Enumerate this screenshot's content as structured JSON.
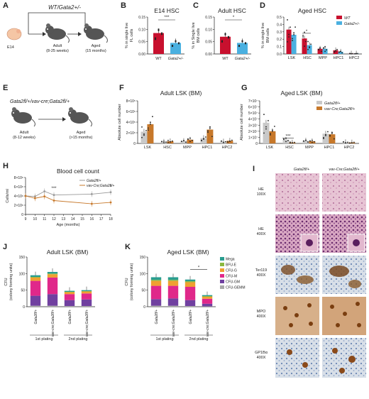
{
  "panels": {
    "A": {
      "letter": "A",
      "genotype": "WT/Gata2+/-",
      "stage1": "E14",
      "stage2_line1": "Adult",
      "stage2_line2": "(8-25 weeks)",
      "stage3_line1": "Aged",
      "stage3_line2": "(15 months)"
    },
    "B": {
      "letter": "B",
      "title": "E14 HSC",
      "ylabel_line1": "% in single live",
      "ylabel_line2": "FL cells",
      "sig": "***"
    },
    "C": {
      "letter": "C",
      "title": "Adult HSC",
      "ylabel_line1": "% in Single live",
      "ylabel_line2": "BM cells",
      "sig": "*"
    },
    "D": {
      "letter": "D",
      "title": "Aged HSC",
      "ylabel_line1": "% in single live",
      "ylabel_line2": "BM cells",
      "sig": "*"
    },
    "E": {
      "letter": "E",
      "genotype": "Gata2fl/+/vav-cre;Gata2fl/+",
      "stage1_line1": "Adult",
      "stage1_line2": "(8-12 weeks)",
      "stage2_line1": "Aged",
      "stage2_line2": "(>15 months)"
    },
    "F": {
      "letter": "F",
      "title": "Adult LSK (BM)",
      "ylabel": "Absolute cell number"
    },
    "G": {
      "letter": "G",
      "title": "Aged LSK (BM)",
      "ylabel": "Absolute cell number",
      "sig": "***"
    },
    "H": {
      "letter": "H",
      "title": "Blood cell count",
      "ylabel": "Cells/ml",
      "xlabel": "Age (months)",
      "sig1": "***",
      "sig2": "*"
    },
    "I": {
      "letter": "I",
      "col1": "Gata2fl/+",
      "col2": "vav-Cre;Gata2fl/+",
      "rows": [
        {
          "line1": "HE",
          "line2": "100X"
        },
        {
          "line1": "HE",
          "line2": "400X"
        },
        {
          "line1": "Ter119",
          "line2": "400X"
        },
        {
          "line1": "MPO",
          "line2": "400X"
        },
        {
          "line1": "GP1Bα",
          "line2": "400X"
        }
      ]
    },
    "J": {
      "letter": "J",
      "title": "Adult LSK (BM)",
      "ylabel_line1": "CFU",
      "ylabel_line2": "(colony forming units)",
      "plating1": "1st plating",
      "plating2": "2nd plating"
    },
    "K": {
      "letter": "K",
      "title": "Aged LSK (BM)",
      "ylabel_line1": "CFU",
      "ylabel_line2": "(colony forming units)",
      "plating1": "1st plating",
      "plating2": "2nd plating",
      "sig": "*"
    }
  },
  "colors": {
    "wt": "#c8102e",
    "gata2het": "#4ab0e0",
    "flox": "#c9c9c9",
    "vav": "#c7782a"
  },
  "chart_data": [
    {
      "id": "B",
      "type": "bar",
      "categories": [
        "WT",
        "Gata2+/-"
      ],
      "values": [
        0.085,
        0.045
      ],
      "yticks": [
        "0.00",
        "0.05",
        "0.10",
        "0.15"
      ],
      "ylim": [
        0,
        0.15
      ]
    },
    {
      "id": "C",
      "type": "bar",
      "categories": [
        "WT",
        "Gata2+/-"
      ],
      "values": [
        0.07,
        0.045
      ],
      "yticks": [
        "0.00",
        "0.05",
        "0.10",
        "0.15"
      ],
      "ylim": [
        0,
        0.15
      ]
    },
    {
      "id": "D",
      "type": "bar",
      "categories": [
        "LSK",
        "HSC",
        "MPP",
        "HPC1",
        "HPC2"
      ],
      "series": [
        {
          "name": "WT",
          "values": [
            0.33,
            0.21,
            0.07,
            0.05,
            0.005
          ]
        },
        {
          "name": "Gata2+/-",
          "values": [
            0.26,
            0.12,
            0.07,
            0.03,
            0.005
          ]
        }
      ],
      "yticks": [
        "0.0",
        "0.1",
        "0.2",
        "0.3",
        "0.4",
        "0.5"
      ],
      "ylim": [
        0,
        0.5
      ],
      "legend": "top-right"
    },
    {
      "id": "F",
      "type": "bar",
      "categories": [
        "LSK",
        "HSC",
        "MPP",
        "HPC1",
        "HPC2"
      ],
      "series": [
        {
          "name": "Gata2fl/+",
          "values": [
            2.2,
            0.3,
            0.45,
            1.0,
            0.35
          ]
        },
        {
          "name": "vav-Cre;Gata2fl/+",
          "values": [
            3.6,
            0.4,
            0.7,
            2.6,
            0.5
          ]
        }
      ],
      "yticks": [
        "0",
        "2×10⁵",
        "4×10⁵",
        "6×10⁵",
        "8×10⁵"
      ],
      "ylim": [
        0,
        8
      ]
    },
    {
      "id": "G",
      "type": "bar",
      "categories": [
        "LSK",
        "HSC",
        "MPP",
        "HPC1",
        "HPC2"
      ],
      "series": [
        {
          "name": "Gata2fl/+",
          "values": [
            3.4,
            0.6,
            0.45,
            1.6,
            0.2
          ]
        },
        {
          "name": "vav-Cre;Gata2fl/+",
          "values": [
            2.0,
            0.15,
            0.35,
            1.5,
            0.15
          ]
        }
      ],
      "yticks": [
        "0",
        "1×10⁷",
        "2×10⁷",
        "3×10⁷",
        "4×10⁷",
        "5×10⁷",
        "6×10⁷",
        "7×10⁷"
      ],
      "ylim": [
        0,
        7
      ],
      "legend": "top-right"
    },
    {
      "id": "H",
      "type": "line",
      "x": [
        9,
        10,
        11,
        12,
        13,
        14,
        15,
        16,
        17,
        18
      ],
      "xticks": [
        "9",
        "10",
        "11",
        "12",
        "13",
        "14",
        "15",
        "16",
        "17",
        "18"
      ],
      "series": [
        {
          "name": "Gata2fl/+",
          "values": [
            4.0,
            3.9,
            5.0,
            4.2,
            null,
            null,
            null,
            4.4,
            null,
            4.8
          ]
        },
        {
          "name": "vav-Cre;Gata2fl/+",
          "values": [
            4.0,
            3.5,
            3.9,
            3.0,
            null,
            null,
            null,
            2.3,
            null,
            2.6
          ]
        }
      ],
      "yticks": [
        "0",
        "2×10⁶",
        "4×10⁶",
        "6×10⁶",
        "8×10⁶"
      ],
      "ylim": [
        0,
        8
      ],
      "legend": "top-right"
    },
    {
      "id": "J",
      "type": "bar",
      "stacked": true,
      "categories": [
        "Gata2fl/+",
        "vav-cre;Gata2fl/+",
        "Gata2fl/+",
        "vav-cre;Gata2fl/+"
      ],
      "series": [
        {
          "name": "CFU-GEMM",
          "values": [
            3,
            3,
            2,
            2
          ]
        },
        {
          "name": "CFU-GM",
          "values": [
            30,
            35,
            18,
            20
          ]
        },
        {
          "name": "CFU-M",
          "values": [
            45,
            50,
            18,
            18
          ]
        },
        {
          "name": "CFU-G",
          "values": [
            10,
            10,
            6,
            6
          ]
        },
        {
          "name": "BFU-E",
          "values": [
            2,
            2,
            1,
            1
          ]
        },
        {
          "name": "Mega",
          "values": [
            5,
            5,
            3,
            3
          ]
        }
      ],
      "yticks": [
        "0",
        "50",
        "100",
        "150"
      ],
      "ylim": [
        0,
        150
      ]
    },
    {
      "id": "K",
      "type": "bar",
      "stacked": true,
      "categories": [
        "Gata2fl/+",
        "vav-cre;Gata2fl/+",
        "Gata2fl/+",
        "vav-cre;Gata2fl/+"
      ],
      "series": [
        {
          "name": "CFU-GEMM",
          "values": [
            3,
            3,
            2,
            1
          ]
        },
        {
          "name": "CFU-GM",
          "values": [
            20,
            22,
            18,
            8
          ]
        },
        {
          "name": "CFU-M",
          "values": [
            40,
            38,
            40,
            15
          ]
        },
        {
          "name": "CFU-G",
          "values": [
            15,
            15,
            14,
            6
          ]
        },
        {
          "name": "BFU-E",
          "values": [
            3,
            3,
            3,
            2
          ]
        },
        {
          "name": "Mega",
          "values": [
            8,
            8,
            5,
            3
          ]
        }
      ],
      "yticks": [
        "0",
        "50",
        "100",
        "150"
      ],
      "ylim": [
        0,
        150
      ],
      "legend": "top-right"
    }
  ],
  "stack_colors": {
    "Mega": "#2a9d8f",
    "BFU-E": "#8ab83e",
    "CFU-G": "#f0a030",
    "CFU-M": "#e0288a",
    "CFU-GM": "#7040a0",
    "CFU-GEMM": "#a8a8a8"
  }
}
